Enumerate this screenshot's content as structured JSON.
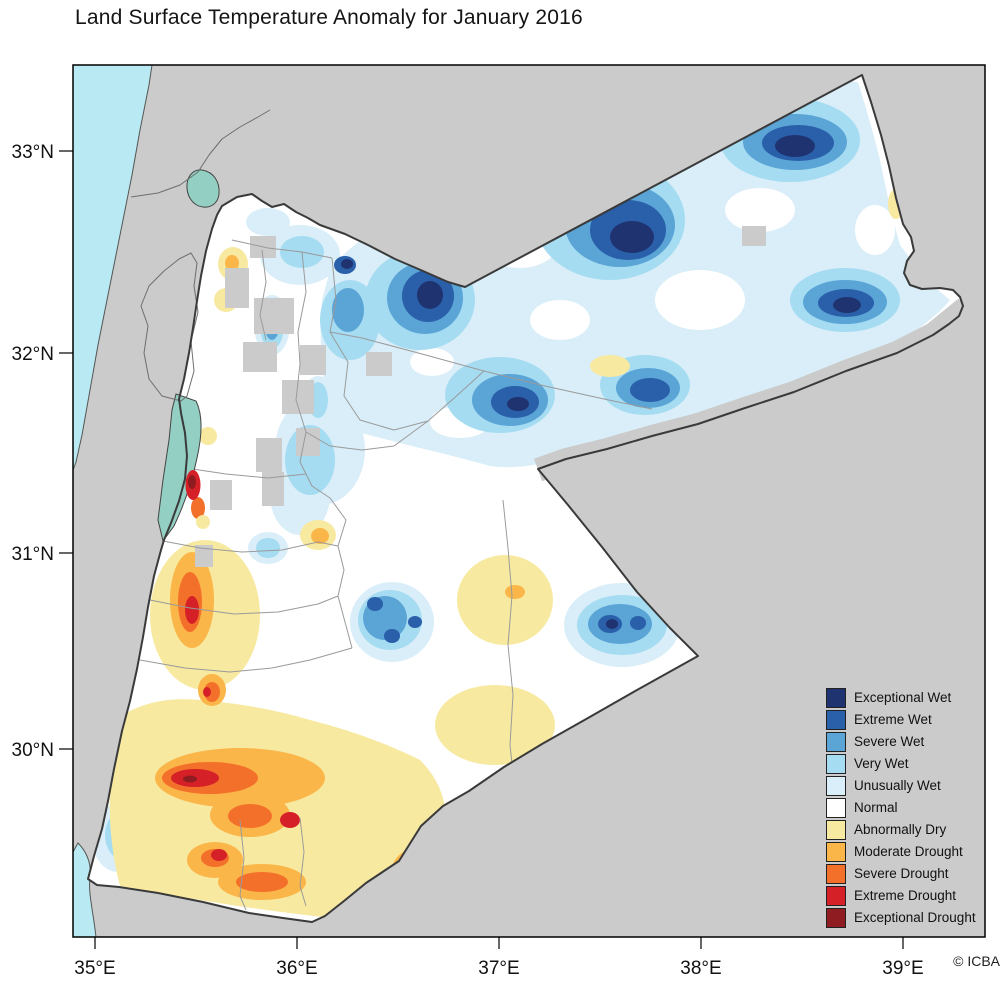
{
  "title": "Land Surface Temperature Anomaly for January 2016",
  "attribution": "© ICBA",
  "axes": {
    "x_ticks": [
      "35°E",
      "36°E",
      "37°E",
      "38°E",
      "39°E"
    ],
    "y_ticks": [
      "33°N",
      "32°N",
      "31°N",
      "30°N"
    ]
  },
  "legend": {
    "items": [
      {
        "label": "Exceptional Wet",
        "color": "#1f3370"
      },
      {
        "label": "Extreme Wet",
        "color": "#2a5fa9"
      },
      {
        "label": "Severe Wet",
        "color": "#5aa4d6"
      },
      {
        "label": "Very Wet",
        "color": "#a5dcf2"
      },
      {
        "label": "Unusually Wet",
        "color": "#d9eef8"
      },
      {
        "label": "Normal",
        "color": "#ffffff"
      },
      {
        "label": "Abnormally Dry",
        "color": "#f8e9a0"
      },
      {
        "label": "Moderate Drought",
        "color": "#fab648"
      },
      {
        "label": "Severe Drought",
        "color": "#f3702b"
      },
      {
        "label": "Extreme Drought",
        "color": "#d62027"
      },
      {
        "label": "Exceptional Drought",
        "color": "#8e1c20"
      }
    ]
  },
  "map": {
    "colors": {
      "land_outside": "#cbcbcb",
      "sea": "#b9e9f2",
      "inland_water": "#93cfc2",
      "country_border": "#3a3a3a",
      "admin_border": "#9a9a9a"
    }
  }
}
